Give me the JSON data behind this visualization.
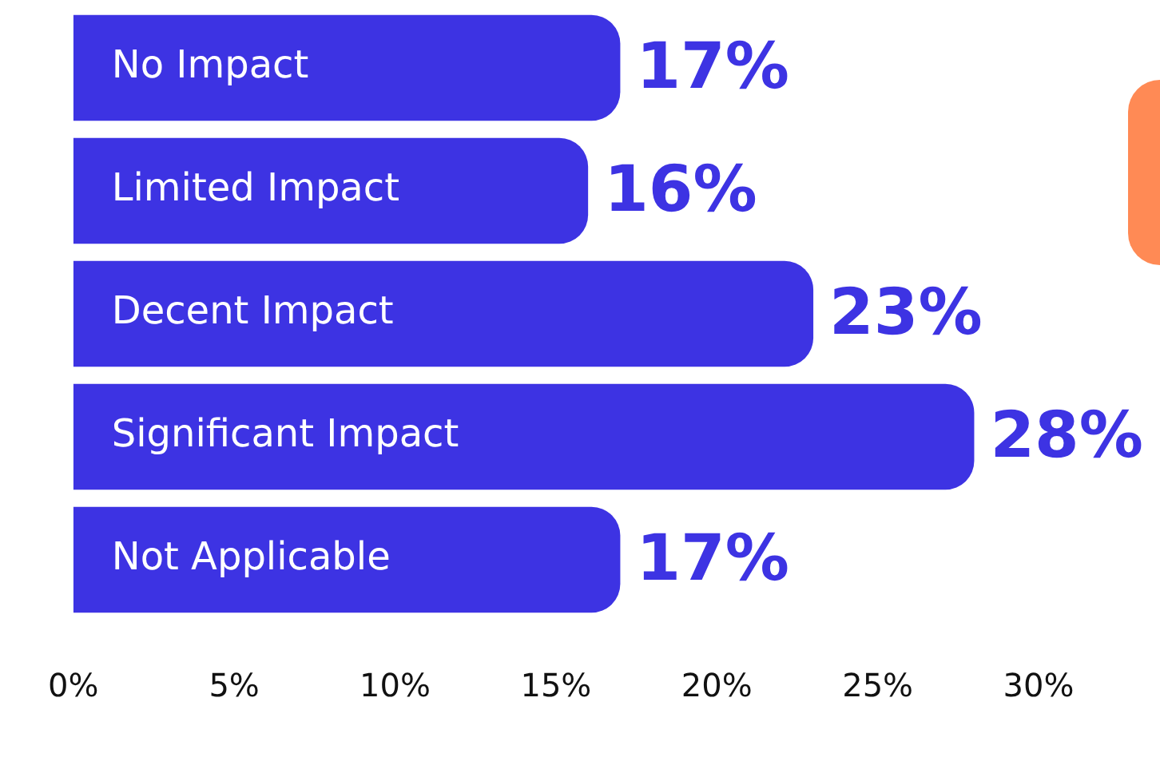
{
  "chart_data": {
    "type": "bar",
    "orientation": "horizontal",
    "categories": [
      "No Impact",
      "Limited Impact",
      "Decent Impact",
      "Significant Impact",
      "Not Applicable"
    ],
    "values": [
      17,
      16,
      23,
      28,
      17
    ],
    "color": "#3d33e3",
    "value_labels": [
      "17%",
      "16%",
      "23%",
      "28%",
      "17%"
    ],
    "xlim": [
      0,
      30
    ],
    "xticks": [
      {
        "value": 0,
        "label": "0%"
      },
      {
        "value": 5,
        "label": "5%"
      },
      {
        "value": 10,
        "label": "10%"
      },
      {
        "value": 15,
        "label": "15%"
      },
      {
        "value": 20,
        "label": "20%"
      },
      {
        "value": 25,
        "label": "25%"
      },
      {
        "value": 30,
        "label": "30%"
      }
    ],
    "grid": false,
    "legend": false
  }
}
